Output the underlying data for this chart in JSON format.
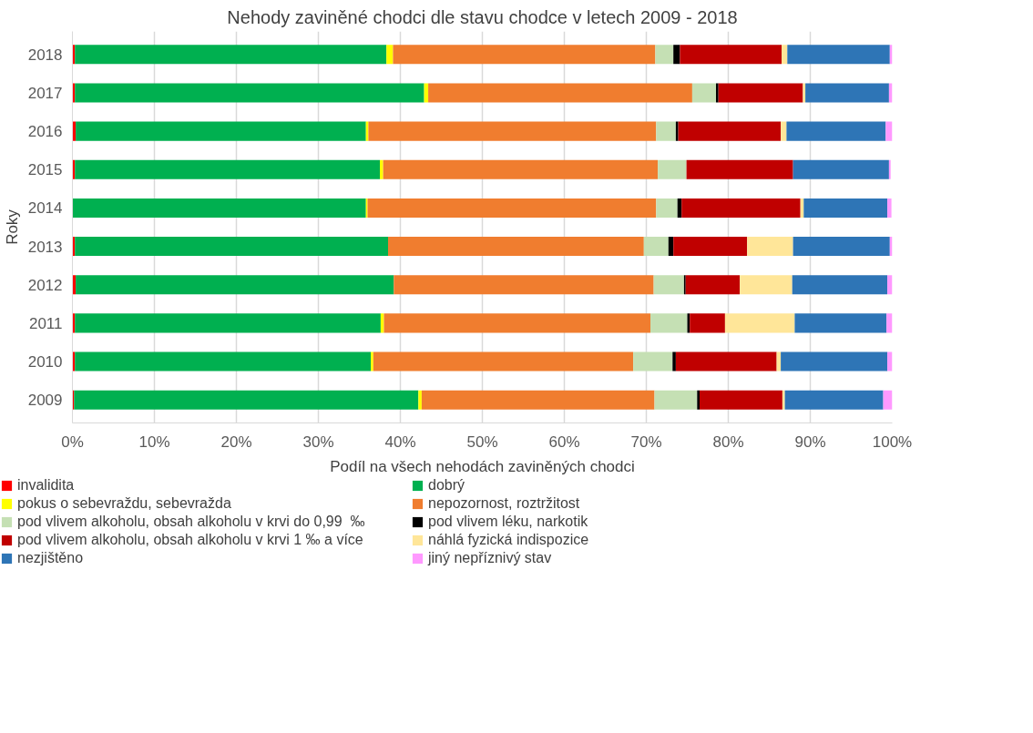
{
  "chart_data": {
    "type": "bar",
    "orientation": "horizontal",
    "stacked": true,
    "title": "Nehody zaviněné chodci dle stavu chodce v letech 2009 - 2018",
    "xlabel": "Podíl na všech nehodách zaviněných chodci",
    "ylabel": "Roky",
    "categories": [
      "2018",
      "2017",
      "2016",
      "2015",
      "2014",
      "2013",
      "2012",
      "2011",
      "2010",
      "2009"
    ],
    "xlim": [
      0,
      100
    ],
    "xticks": [
      {
        "value": 0,
        "label": "0%"
      },
      {
        "value": 10,
        "label": "10%"
      },
      {
        "value": 20,
        "label": "20%"
      },
      {
        "value": 30,
        "label": "30%"
      },
      {
        "value": 40,
        "label": "40%"
      },
      {
        "value": 50,
        "label": "50%"
      },
      {
        "value": 60,
        "label": "60%"
      },
      {
        "value": 70,
        "label": "70%"
      },
      {
        "value": 80,
        "label": "80%"
      },
      {
        "value": 90,
        "label": "90%"
      },
      {
        "value": 100,
        "label": "100%"
      }
    ],
    "grid": "x",
    "legend": "bottom",
    "series": [
      {
        "name": "invalidita",
        "color": "#ff0000",
        "values": [
          0.3,
          0.3,
          0.4,
          0.3,
          null,
          0.3,
          0.4,
          0.3,
          0.3,
          0.2
        ]
      },
      {
        "name": "dobrý",
        "color": "#00b050",
        "values": [
          38.0,
          42.6,
          35.4,
          37.2,
          35.8,
          38.2,
          38.8,
          37.3,
          36.1,
          42.0
        ]
      },
      {
        "name": "pokus o sebevraždu, sebevražda",
        "color": "#ffff00",
        "values": [
          0.8,
          0.5,
          0.3,
          0.4,
          0.2,
          0.0,
          0.0,
          0.4,
          0.3,
          0.4
        ]
      },
      {
        "name": "nepozornost, roztržitost",
        "color": "#f07d2f",
        "values": [
          32.0,
          32.2,
          35.1,
          33.5,
          35.2,
          31.2,
          31.7,
          32.5,
          31.7,
          28.4
        ]
      },
      {
        "name": "pod vlivem alkoholu, obsah alkoholu v krvi do 0,99  ‰",
        "color": "#c5e0b4",
        "values": [
          2.2,
          2.9,
          2.4,
          3.5,
          2.6,
          3.0,
          3.7,
          4.5,
          4.8,
          5.2
        ]
      },
      {
        "name": "pod vlivem léku, narkotik",
        "color": "#000000",
        "values": [
          0.8,
          0.3,
          0.3,
          null,
          0.5,
          0.6,
          0.2,
          0.3,
          0.4,
          0.3
        ]
      },
      {
        "name": "pod vlivem alkoholu, obsah alkoholu v krvi 1 ‰ a více",
        "color": "#c00000",
        "values": [
          12.4,
          10.3,
          12.5,
          13.0,
          14.5,
          9.0,
          6.6,
          4.3,
          12.3,
          10.1
        ]
      },
      {
        "name": "náhlá fyzická indispozice",
        "color": "#ffe699",
        "values": [
          0.7,
          0.3,
          0.7,
          null,
          0.4,
          5.6,
          6.4,
          8.5,
          0.5,
          0.3
        ]
      },
      {
        "name": "nezjištěno",
        "color": "#2e75b6",
        "values": [
          12.5,
          10.2,
          12.1,
          11.7,
          10.2,
          11.8,
          11.6,
          11.2,
          13.0,
          12.0
        ]
      },
      {
        "name": "jiný nepříznivý stav",
        "color": "#ff99ff",
        "values": [
          0.3,
          0.4,
          0.8,
          0.2,
          0.5,
          0.3,
          0.6,
          0.7,
          0.6,
          1.1
        ]
      }
    ]
  }
}
